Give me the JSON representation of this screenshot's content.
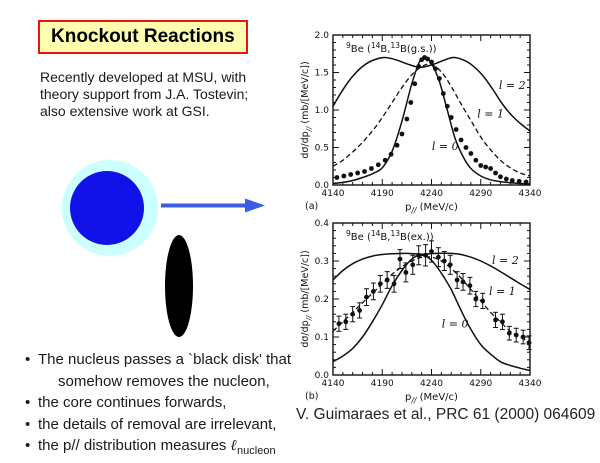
{
  "slide": {
    "title": "Knockout Reactions",
    "intro_lines": [
      "Recently developed at MSU, with",
      "theory support from J.A. Tostevin;",
      "also extensive work at GSI."
    ],
    "bullets": [
      {
        "marker": "•",
        "text": "The nucleus passes a `black disk' that"
      },
      {
        "marker": "",
        "text": "somehow removes the nucleon,"
      },
      {
        "marker": "•",
        "text": "the core continues forwards,"
      },
      {
        "marker": "•",
        "text": "the details of removal are irrelevant,"
      },
      {
        "marker": "•",
        "text": "the p// distribution measures ",
        "ell": "ℓ",
        "ell_sub": "nucleon"
      }
    ],
    "citation": "V. Guimaraes et al., PRC 61 (2000) 064609",
    "colors": {
      "title_bg": "#ffffb0",
      "title_border": "#ee1111",
      "halo": "#ccffff",
      "core": "#1111e8",
      "arrow": "#3c5ce6",
      "disk": "#000000",
      "figure_ink": "#111111"
    }
  },
  "chart_data": [
    {
      "type": "line",
      "panel": "(a)",
      "title_parts": [
        {
          "t": "9",
          "sup": true
        },
        {
          "t": "Be ("
        },
        {
          "t": "14",
          "sup": true
        },
        {
          "t": "B,"
        },
        {
          "t": "13",
          "sup": true
        },
        {
          "t": "B(g.s.))"
        }
      ],
      "xlabel": {
        "pre": "p",
        "sub": "//",
        "post": " (MeV/c)"
      },
      "ylabel": {
        "pre": "dσ/dp",
        "sub": "//",
        "post": " (mb/[MeV/c])"
      },
      "xlim": [
        4140,
        4340
      ],
      "ylim": [
        0,
        2.0
      ],
      "xticks": [
        4140,
        4190,
        4240,
        4290,
        4340
      ],
      "yticks": [
        0,
        0.5,
        1.0,
        1.5,
        2.0
      ],
      "ytick_labels": [
        "0.0",
        "0.5",
        "1.0",
        "1.5",
        "2.0"
      ],
      "minor_x": 10,
      "minor_y": 0.1,
      "marker_radius": 2.4,
      "curves": [
        {
          "name": "l=0",
          "style": "solid",
          "label": {
            "text": "l = 0",
            "x": 4254,
            "y": 0.47
          },
          "points": [
            [
              4140,
              0.02
            ],
            [
              4150,
              0.035
            ],
            [
              4160,
              0.06
            ],
            [
              4170,
              0.1
            ],
            [
              4180,
              0.15
            ],
            [
              4190,
              0.23
            ],
            [
              4200,
              0.45
            ],
            [
              4210,
              0.85
            ],
            [
              4220,
              1.35
            ],
            [
              4228,
              1.65
            ],
            [
              4234,
              1.7
            ],
            [
              4240,
              1.62
            ],
            [
              4248,
              1.38
            ],
            [
              4256,
              1.0
            ],
            [
              4264,
              0.62
            ],
            [
              4272,
              0.38
            ],
            [
              4280,
              0.22
            ],
            [
              4290,
              0.12
            ],
            [
              4300,
              0.07
            ],
            [
              4310,
              0.045
            ],
            [
              4320,
              0.03
            ],
            [
              4330,
              0.02
            ],
            [
              4340,
              0.015
            ]
          ]
        },
        {
          "name": "l=1",
          "style": "dashed",
          "label": {
            "text": "l = 1",
            "x": 4300,
            "y": 0.9
          },
          "points": [
            [
              4140,
              0.25
            ],
            [
              4150,
              0.33
            ],
            [
              4160,
              0.44
            ],
            [
              4170,
              0.57
            ],
            [
              4180,
              0.72
            ],
            [
              4190,
              0.9
            ],
            [
              4200,
              1.1
            ],
            [
              4210,
              1.3
            ],
            [
              4220,
              1.47
            ],
            [
              4230,
              1.58
            ],
            [
              4238,
              1.61
            ],
            [
              4246,
              1.56
            ],
            [
              4254,
              1.44
            ],
            [
              4262,
              1.27
            ],
            [
              4270,
              1.08
            ],
            [
              4280,
              0.86
            ],
            [
              4290,
              0.64
            ],
            [
              4300,
              0.47
            ],
            [
              4310,
              0.33
            ],
            [
              4320,
              0.23
            ],
            [
              4330,
              0.16
            ],
            [
              4340,
              0.12
            ]
          ]
        },
        {
          "name": "l=2",
          "style": "solid",
          "label": {
            "text": "l = 2",
            "x": 4322,
            "y": 1.28
          },
          "points": [
            [
              4140,
              1.05
            ],
            [
              4150,
              1.27
            ],
            [
              4160,
              1.45
            ],
            [
              4170,
              1.58
            ],
            [
              4180,
              1.66
            ],
            [
              4192,
              1.7
            ],
            [
              4204,
              1.67
            ],
            [
              4216,
              1.61
            ],
            [
              4228,
              1.57
            ],
            [
              4240,
              1.6
            ],
            [
              4252,
              1.66
            ],
            [
              4262,
              1.7
            ],
            [
              4272,
              1.67
            ],
            [
              4282,
              1.59
            ],
            [
              4292,
              1.46
            ],
            [
              4302,
              1.28
            ],
            [
              4312,
              1.08
            ],
            [
              4322,
              0.92
            ],
            [
              4332,
              0.8
            ],
            [
              4340,
              0.72
            ]
          ]
        }
      ],
      "points": [
        [
          4144,
          0.1
        ],
        [
          4151,
          0.12
        ],
        [
          4158,
          0.14
        ],
        [
          4165,
          0.16
        ],
        [
          4172,
          0.18
        ],
        [
          4179,
          0.22
        ],
        [
          4186,
          0.27
        ],
        [
          4193,
          0.33
        ],
        [
          4199,
          0.41
        ],
        [
          4205,
          0.53
        ],
        [
          4210,
          0.68
        ],
        [
          4215,
          0.88
        ],
        [
          4219,
          1.1
        ],
        [
          4223,
          1.35
        ],
        [
          4227,
          1.58
        ],
        [
          4230,
          1.67
        ],
        [
          4233,
          1.7
        ],
        [
          4236,
          1.68
        ],
        [
          4240,
          1.64
        ],
        [
          4244,
          1.55
        ],
        [
          4248,
          1.42
        ],
        [
          4252,
          1.22
        ],
        [
          4256,
          1.05
        ],
        [
          4260,
          0.9
        ],
        [
          4265,
          0.74
        ],
        [
          4270,
          0.6
        ],
        [
          4275,
          0.5
        ],
        [
          4280,
          0.42
        ],
        [
          4285,
          0.33
        ],
        [
          4290,
          0.26
        ],
        [
          4295,
          0.24
        ],
        [
          4300,
          0.22
        ],
        [
          4305,
          0.16
        ],
        [
          4310,
          0.11
        ],
        [
          4316,
          0.08
        ],
        [
          4322,
          0.06
        ],
        [
          4329,
          0.05
        ],
        [
          4336,
          0.04
        ]
      ]
    },
    {
      "type": "line",
      "panel": "(b)",
      "title_parts": [
        {
          "t": "9",
          "sup": true
        },
        {
          "t": "Be ("
        },
        {
          "t": "14",
          "sup": true
        },
        {
          "t": "B,"
        },
        {
          "t": "13",
          "sup": true
        },
        {
          "t": "B(ex.))"
        }
      ],
      "xlabel": {
        "pre": "p",
        "sub": "//",
        "post": " (MeV/c)"
      },
      "ylabel": {
        "pre": "dσ/dp",
        "sub": "//",
        "post": " (mb/[MeV/c])"
      },
      "xlim": [
        4140,
        4340
      ],
      "ylim": [
        0,
        0.4
      ],
      "xticks": [
        4140,
        4190,
        4240,
        4290,
        4340
      ],
      "yticks": [
        0,
        0.1,
        0.2,
        0.3,
        0.4
      ],
      "ytick_labels": [
        "0.0",
        "0.1",
        "0.2",
        "0.3",
        "0.4"
      ],
      "minor_x": 10,
      "minor_y": 0.02,
      "marker_radius": 2.4,
      "curves": [
        {
          "name": "l=0",
          "style": "solid",
          "label": {
            "text": "l = 0",
            "x": 4264,
            "y": 0.125
          },
          "points": [
            [
              4140,
              0.035
            ],
            [
              4150,
              0.05
            ],
            [
              4160,
              0.07
            ],
            [
              4170,
              0.1
            ],
            [
              4180,
              0.14
            ],
            [
              4190,
              0.185
            ],
            [
              4200,
              0.235
            ],
            [
              4210,
              0.275
            ],
            [
              4220,
              0.305
            ],
            [
              4228,
              0.315
            ],
            [
              4236,
              0.31
            ],
            [
              4244,
              0.29
            ],
            [
              4252,
              0.26
            ],
            [
              4260,
              0.225
            ],
            [
              4270,
              0.17
            ],
            [
              4280,
              0.12
            ],
            [
              4290,
              0.08
            ],
            [
              4300,
              0.055
            ],
            [
              4310,
              0.035
            ],
            [
              4320,
              0.025
            ],
            [
              4330,
              0.018
            ],
            [
              4340,
              0.012
            ]
          ]
        },
        {
          "name": "l=1",
          "style": "dashed",
          "label": {
            "text": "l = 1",
            "x": 4312,
            "y": 0.21
          },
          "points": [
            [
              4140,
              0.115
            ],
            [
              4150,
              0.14
            ],
            [
              4160,
              0.165
            ],
            [
              4170,
              0.19
            ],
            [
              4180,
              0.215
            ],
            [
              4190,
              0.24
            ],
            [
              4200,
              0.265
            ],
            [
              4210,
              0.285
            ],
            [
              4220,
              0.3
            ],
            [
              4230,
              0.31
            ],
            [
              4240,
              0.31
            ],
            [
              4250,
              0.3
            ],
            [
              4260,
              0.28
            ],
            [
              4270,
              0.255
            ],
            [
              4280,
              0.225
            ],
            [
              4290,
              0.195
            ],
            [
              4300,
              0.165
            ],
            [
              4310,
              0.14
            ],
            [
              4320,
              0.115
            ],
            [
              4330,
              0.1
            ],
            [
              4340,
              0.085
            ]
          ]
        },
        {
          "name": "l=2",
          "style": "solid",
          "label": {
            "text": "l = 2",
            "x": 4315,
            "y": 0.292
          },
          "points": [
            [
              4140,
              0.25
            ],
            [
              4150,
              0.275
            ],
            [
              4160,
              0.293
            ],
            [
              4170,
              0.305
            ],
            [
              4180,
              0.313
            ],
            [
              4190,
              0.317
            ],
            [
              4200,
              0.319
            ],
            [
              4215,
              0.32
            ],
            [
              4230,
              0.318
            ],
            [
              4245,
              0.32
            ],
            [
              4260,
              0.32
            ],
            [
              4270,
              0.317
            ],
            [
              4280,
              0.31
            ],
            [
              4290,
              0.3
            ],
            [
              4300,
              0.287
            ],
            [
              4310,
              0.272
            ],
            [
              4320,
              0.256
            ],
            [
              4330,
              0.24
            ],
            [
              4340,
              0.225
            ]
          ]
        }
      ],
      "points": [
        [
          4146,
          0.135,
          0.02
        ],
        [
          4153,
          0.14,
          0.02
        ],
        [
          4160,
          0.16,
          0.02
        ],
        [
          4167,
          0.17,
          0.02
        ],
        [
          4174,
          0.205,
          0.022
        ],
        [
          4181,
          0.22,
          0.022
        ],
        [
          4188,
          0.24,
          0.022
        ],
        [
          4195,
          0.25,
          0.022
        ],
        [
          4202,
          0.24,
          0.022
        ],
        [
          4208,
          0.305,
          0.025
        ],
        [
          4214,
          0.27,
          0.025
        ],
        [
          4221,
          0.29,
          0.025
        ],
        [
          4227,
          0.315,
          0.025
        ],
        [
          4234,
          0.315,
          0.028
        ],
        [
          4240,
          0.325,
          0.028
        ],
        [
          4247,
          0.31,
          0.025
        ],
        [
          4253,
          0.3,
          0.025
        ],
        [
          4259,
          0.29,
          0.025
        ],
        [
          4266,
          0.25,
          0.022
        ],
        [
          4272,
          0.245,
          0.022
        ],
        [
          4279,
          0.235,
          0.022
        ],
        [
          4285,
          0.2,
          0.02
        ],
        [
          4292,
          0.195,
          0.02
        ],
        [
          4305,
          0.145,
          0.02
        ],
        [
          4312,
          0.14,
          0.02
        ],
        [
          4319,
          0.11,
          0.018
        ],
        [
          4326,
          0.105,
          0.018
        ],
        [
          4333,
          0.1,
          0.018
        ],
        [
          4339,
          0.085,
          0.018
        ]
      ]
    }
  ]
}
